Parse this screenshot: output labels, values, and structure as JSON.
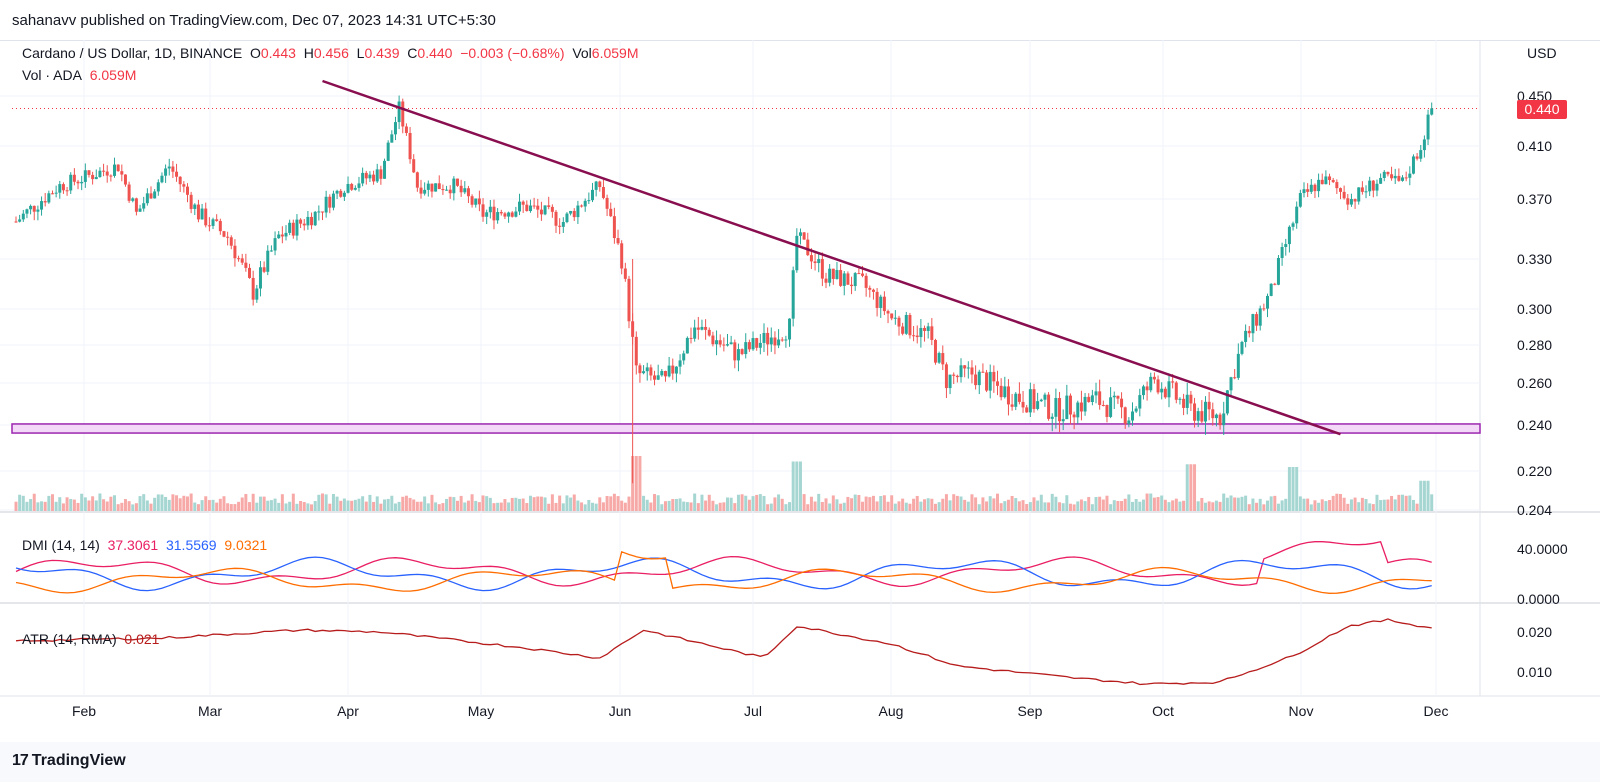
{
  "header": {
    "publisher": "sahanavv published on TradingView.com, Dec 07, 2023 14:31 UTC+5:30"
  },
  "legend": {
    "symbol": "Cardano / US Dollar, 1D, BINANCE",
    "o_label": "O",
    "o_val": "0.443",
    "h_label": "H",
    "h_val": "0.456",
    "l_label": "L",
    "l_val": "0.439",
    "c_label": "C",
    "c_val": "0.440",
    "change": "−0.003 (−0.68%)",
    "vol_label": "Vol",
    "vol_val": "6.059M",
    "vol_line_label": "Vol · ADA",
    "vol_line_val": "6.059M"
  },
  "dmi": {
    "label": "DMI (14, 14)",
    "v1": "37.3061",
    "v2": "31.5569",
    "v3": "9.0321"
  },
  "atr": {
    "label": "ATR (14, RMA)",
    "v1": "0.021"
  },
  "price_axis": {
    "currency": "USD",
    "current_price": "0.440"
  },
  "footer": {
    "brand": "TradingView",
    "logo_mark": "17"
  },
  "colors": {
    "up": "#26a69a",
    "down": "#ef5350",
    "trendline": "#880e4f",
    "support": "#ce93d8",
    "dmi_plus": "#e91e63",
    "dmi_minus": "#2962ff",
    "adx": "#ff6d00",
    "atr": "#b71c1c"
  },
  "chart_data": {
    "type": "candlestick",
    "title": "Cardano / US Dollar, 1D, BINANCE",
    "x_months": [
      "Feb",
      "Mar",
      "Apr",
      "May",
      "Jun",
      "Jul",
      "Aug",
      "Sep",
      "Oct",
      "Nov",
      "Dec"
    ],
    "price_ticks": [
      "0.450",
      "0.410",
      "0.370",
      "0.330",
      "0.300",
      "0.280",
      "0.260",
      "0.240",
      "0.220",
      "0.204"
    ],
    "price_keypoints": [
      {
        "d": 0,
        "p": 0.355
      },
      {
        "d": 12,
        "p": 0.38
      },
      {
        "d": 28,
        "p": 0.395
      },
      {
        "d": 33,
        "p": 0.36
      },
      {
        "d": 42,
        "p": 0.395
      },
      {
        "d": 50,
        "p": 0.36
      },
      {
        "d": 58,
        "p": 0.345
      },
      {
        "d": 65,
        "p": 0.31
      },
      {
        "d": 72,
        "p": 0.345
      },
      {
        "d": 82,
        "p": 0.36
      },
      {
        "d": 90,
        "p": 0.38
      },
      {
        "d": 100,
        "p": 0.39
      },
      {
        "d": 105,
        "p": 0.44
      },
      {
        "d": 110,
        "p": 0.38
      },
      {
        "d": 120,
        "p": 0.38
      },
      {
        "d": 128,
        "p": 0.36
      },
      {
        "d": 140,
        "p": 0.365
      },
      {
        "d": 150,
        "p": 0.355
      },
      {
        "d": 160,
        "p": 0.38
      },
      {
        "d": 166,
        "p": 0.33
      },
      {
        "d": 170,
        "p": 0.265
      },
      {
        "d": 178,
        "p": 0.26
      },
      {
        "d": 186,
        "p": 0.29
      },
      {
        "d": 198,
        "p": 0.275
      },
      {
        "d": 212,
        "p": 0.29
      },
      {
        "d": 214,
        "p": 0.345
      },
      {
        "d": 222,
        "p": 0.32
      },
      {
        "d": 232,
        "p": 0.315
      },
      {
        "d": 240,
        "p": 0.295
      },
      {
        "d": 250,
        "p": 0.285
      },
      {
        "d": 255,
        "p": 0.262
      },
      {
        "d": 262,
        "p": 0.265
      },
      {
        "d": 272,
        "p": 0.255
      },
      {
        "d": 285,
        "p": 0.247
      },
      {
        "d": 296,
        "p": 0.252
      },
      {
        "d": 305,
        "p": 0.245
      },
      {
        "d": 312,
        "p": 0.262
      },
      {
        "d": 322,
        "p": 0.247
      },
      {
        "d": 330,
        "p": 0.244
      },
      {
        "d": 336,
        "p": 0.28
      },
      {
        "d": 344,
        "p": 0.31
      },
      {
        "d": 352,
        "p": 0.37
      },
      {
        "d": 358,
        "p": 0.385
      },
      {
        "d": 366,
        "p": 0.37
      },
      {
        "d": 374,
        "p": 0.385
      },
      {
        "d": 380,
        "p": 0.382
      },
      {
        "d": 385,
        "p": 0.41
      },
      {
        "d": 388,
        "p": 0.44
      }
    ],
    "volume_spikes": [
      {
        "d": 170,
        "v": 1.0
      },
      {
        "d": 214,
        "v": 0.9
      },
      {
        "d": 322,
        "v": 0.85
      },
      {
        "d": 350,
        "v": 0.8
      },
      {
        "d": 386,
        "v": 0.55
      }
    ],
    "trendline": {
      "from": {
        "d": 84,
        "p": 0.462
      },
      "to": {
        "d": 363,
        "p": 0.236
      }
    },
    "support_zone": {
      "low": 0.2365,
      "high": 0.2405
    },
    "dmi_ticks": [
      "40.0000",
      "0.0000"
    ],
    "atr_ticks": [
      "0.020",
      "0.010"
    ],
    "atr_keypoints": [
      {
        "d": 0,
        "v": 0.0178
      },
      {
        "d": 40,
        "v": 0.0185
      },
      {
        "d": 78,
        "v": 0.0205
      },
      {
        "d": 100,
        "v": 0.02
      },
      {
        "d": 140,
        "v": 0.016
      },
      {
        "d": 160,
        "v": 0.0135
      },
      {
        "d": 172,
        "v": 0.0205
      },
      {
        "d": 205,
        "v": 0.0135
      },
      {
        "d": 214,
        "v": 0.0215
      },
      {
        "d": 240,
        "v": 0.017
      },
      {
        "d": 258,
        "v": 0.0115
      },
      {
        "d": 290,
        "v": 0.0085
      },
      {
        "d": 310,
        "v": 0.007
      },
      {
        "d": 330,
        "v": 0.0075
      },
      {
        "d": 350,
        "v": 0.014
      },
      {
        "d": 365,
        "v": 0.0215
      },
      {
        "d": 376,
        "v": 0.023
      },
      {
        "d": 388,
        "v": 0.021
      }
    ]
  }
}
